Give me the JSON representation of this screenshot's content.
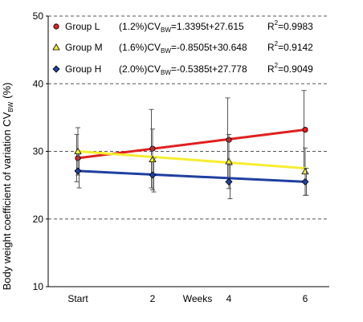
{
  "chart_data": {
    "type": "line",
    "title": "",
    "xlabel": "Weeks",
    "ylabel": "Body weight coefficient of variation CV",
    "ylabel_sub": "BW",
    "ylabel_unit": "(%)",
    "ylim": [
      10,
      50
    ],
    "yticks": [
      10,
      20,
      30,
      40,
      50
    ],
    "grid": "horizontal dashed",
    "legend_position": "top-left",
    "x_categories": [
      "Start",
      "2",
      "Weeks",
      "4",
      "6"
    ],
    "x": [
      0,
      2,
      4,
      6
    ],
    "series": [
      {
        "name": "Group L",
        "color": "#e02020",
        "marker": "circle",
        "equation_prefix": "(1.2%)CV",
        "equation_sub": "BW",
        "equation_rest": "=1.3395t+27.615",
        "r2_label": "R",
        "r2_sup": "2",
        "r2_value": "=0.9983",
        "fit_start": 29.0,
        "fit_end": 33.2,
        "points": [
          29.0,
          30.4,
          31.7,
          33.2
        ],
        "err": [
          3.5,
          5.8,
          6.2,
          5.8
        ]
      },
      {
        "name": "Group M",
        "color": "#f5ee30",
        "marker": "triangle",
        "equation_prefix": "(1.6%)CV",
        "equation_sub": "BW",
        "equation_rest": "=-0.8505t+30.648",
        "r2_label": "R",
        "r2_sup": "2",
        "r2_value": "=0.9142",
        "fit_start": 30.0,
        "fit_end": 27.5,
        "points": [
          30.0,
          28.8,
          28.5,
          27.0
        ],
        "err": [
          3.5,
          4.5,
          4.0,
          3.5
        ]
      },
      {
        "name": "Group H",
        "color": "#2040a0",
        "marker": "diamond",
        "equation_prefix": "(2.0%)CV",
        "equation_sub": "BW",
        "equation_rest": "=-0.5385t+27.778",
        "r2_label": "R",
        "r2_sup": "2",
        "r2_value": "=0.9049",
        "fit_start": 27.1,
        "fit_end": 25.5,
        "points": [
          27.1,
          26.5,
          25.5,
          25.5
        ],
        "err": [
          2.5,
          2.5,
          2.5,
          2.0
        ]
      }
    ]
  }
}
